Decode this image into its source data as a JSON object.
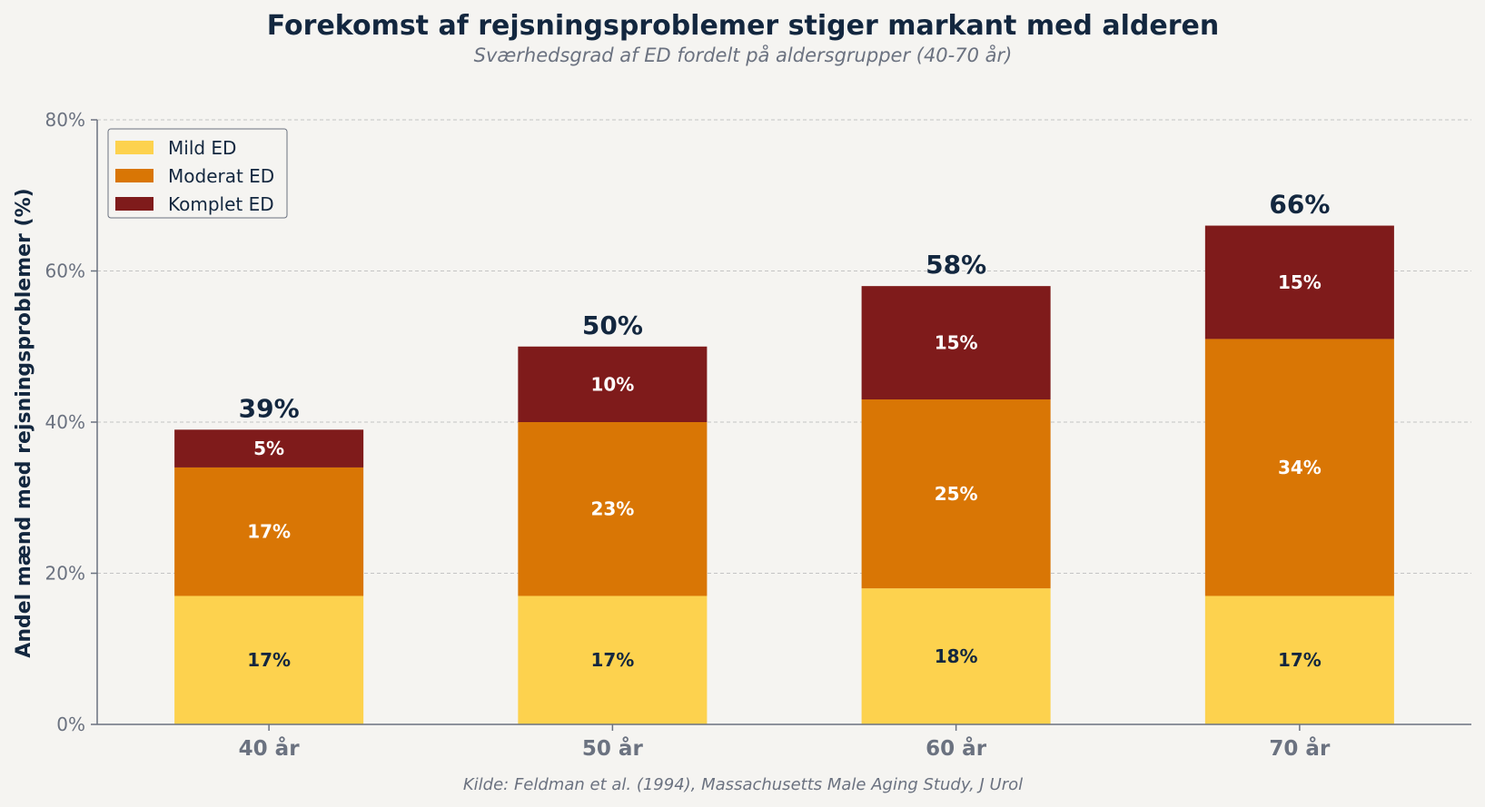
{
  "chart_data": {
    "type": "bar",
    "stacked": true,
    "title": "Forekomst af rejsningsproblemer stiger markant med alderen",
    "subtitle": "Sværhedsgrad af ED fordelt på aldersgrupper (40-70 år)",
    "ylabel": "Andel mænd med rejsningsproblemer (%)",
    "xlabel": "",
    "categories": [
      "40 år",
      "50 år",
      "60 år",
      "70 år"
    ],
    "series": [
      {
        "name": "Mild ED",
        "values": [
          17,
          17,
          18,
          17
        ],
        "color": "#fdd24e",
        "label_color": "#13273f"
      },
      {
        "name": "Moderat ED",
        "values": [
          17,
          23,
          25,
          34
        ],
        "color": "#d97605",
        "label_color": "#ffffff"
      },
      {
        "name": "Komplet ED",
        "values": [
          5,
          10,
          15,
          15
        ],
        "color": "#7f1b1b",
        "label_color": "#ffffff"
      }
    ],
    "totals": [
      39,
      50,
      58,
      66
    ],
    "value_suffix": "%",
    "ylim": [
      0,
      80
    ],
    "yticks": [
      0,
      20,
      40,
      60,
      80
    ],
    "grid": true,
    "legend_position": "top-left",
    "source": "Kilde: Feldman et al. (1994), Massachusetts Male Aging Study, J Urol"
  }
}
